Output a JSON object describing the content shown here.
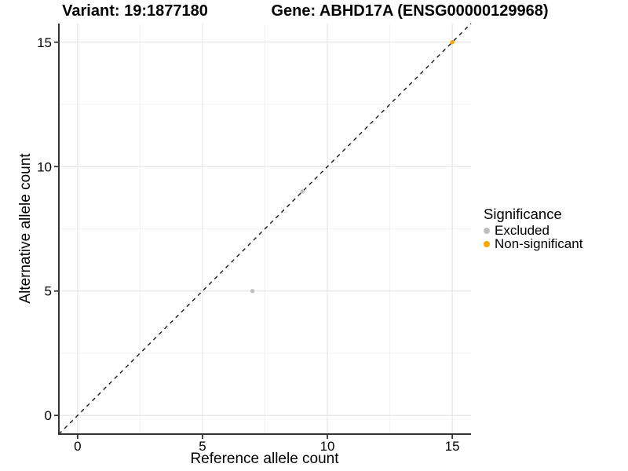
{
  "chart_data": {
    "type": "scatter",
    "title_left": "Variant: 19:1877180",
    "title_right": "Gene: ABHD17A (ENSG00000129968)",
    "xlabel": "Reference allele count",
    "ylabel": "Alternative allele count",
    "xlim": [
      -0.75,
      15.75
    ],
    "ylim": [
      -0.75,
      15.75
    ],
    "xticks": [
      0,
      5,
      10,
      15
    ],
    "yticks": [
      0,
      5,
      10,
      15
    ],
    "minor_gridlines_x": [
      2.5,
      7.5,
      12.5
    ],
    "minor_gridlines_y": [
      2.5,
      7.5,
      12.5
    ],
    "grid": "major and minor, light gray, white panel background",
    "identity_line": {
      "slope": 1,
      "intercept": 0,
      "style": "dashed",
      "color": "#1a1a1a"
    },
    "legend": {
      "title": "Significance",
      "position": "right"
    },
    "series": [
      {
        "name": "Excluded",
        "color": "#BEBEBE",
        "points": [
          [
            7,
            5
          ],
          [
            9,
            9
          ]
        ]
      },
      {
        "name": "Non-significant",
        "color": "#FFA500",
        "points": [
          [
            15,
            15
          ]
        ]
      }
    ]
  },
  "colors": {
    "grid_major": "#E6E6E6",
    "grid_minor": "#F2F2F2",
    "axis_line": "#333333",
    "tick_label": "#000000",
    "excluded": "#BEBEBE",
    "non_significant": "#FFA500"
  }
}
